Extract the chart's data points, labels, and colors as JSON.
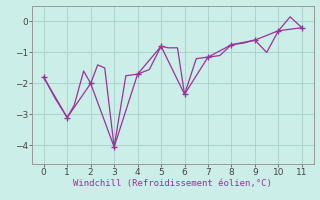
{
  "xlabel": "Windchill (Refroidissement éolien,°C)",
  "bg_color": "#cceee8",
  "line_color": "#993399",
  "grid_color": "#aad4cc",
  "axis_color": "#999999",
  "xlim": [
    -0.5,
    11.5
  ],
  "ylim": [
    -4.6,
    0.5
  ],
  "xticks": [
    0,
    1,
    2,
    3,
    4,
    5,
    6,
    7,
    8,
    9,
    10,
    11
  ],
  "yticks": [
    0,
    -1,
    -2,
    -3,
    -4
  ],
  "jagged_x": [
    0,
    0.5,
    1,
    1.3,
    1.7,
    2,
    2.3,
    2.6,
    3,
    3.5,
    4,
    4.5,
    5,
    5.3,
    5.7,
    6,
    6.5,
    7,
    7.5,
    8,
    8.5,
    9,
    9.5,
    10,
    10.5,
    11
  ],
  "jagged_y": [
    -1.8,
    -2.5,
    -3.1,
    -2.7,
    -1.6,
    -2.0,
    -1.4,
    -1.5,
    -4.05,
    -1.75,
    -1.7,
    -1.55,
    -0.8,
    -0.85,
    -0.85,
    -2.35,
    -1.2,
    -1.15,
    -1.1,
    -0.75,
    -0.7,
    -0.6,
    -1.0,
    -0.3,
    0.15,
    -0.2
  ],
  "trend_x": [
    0,
    1,
    2,
    3,
    4,
    5,
    6,
    7,
    8,
    9,
    10,
    11
  ],
  "trend_y": [
    -1.8,
    -3.1,
    -2.0,
    -4.05,
    -1.7,
    -0.8,
    -2.35,
    -1.15,
    -0.75,
    -0.6,
    -0.3,
    -0.2
  ],
  "marker_x": [
    0,
    1,
    2,
    3,
    4,
    5,
    6,
    7,
    8,
    9,
    10,
    11
  ],
  "marker_y": [
    -1.8,
    -3.1,
    -2.0,
    -4.05,
    -1.7,
    -0.8,
    -2.35,
    -1.15,
    -0.75,
    -0.6,
    -0.3,
    -0.2
  ],
  "font_size_label": 6.5,
  "font_size_tick": 6.5
}
